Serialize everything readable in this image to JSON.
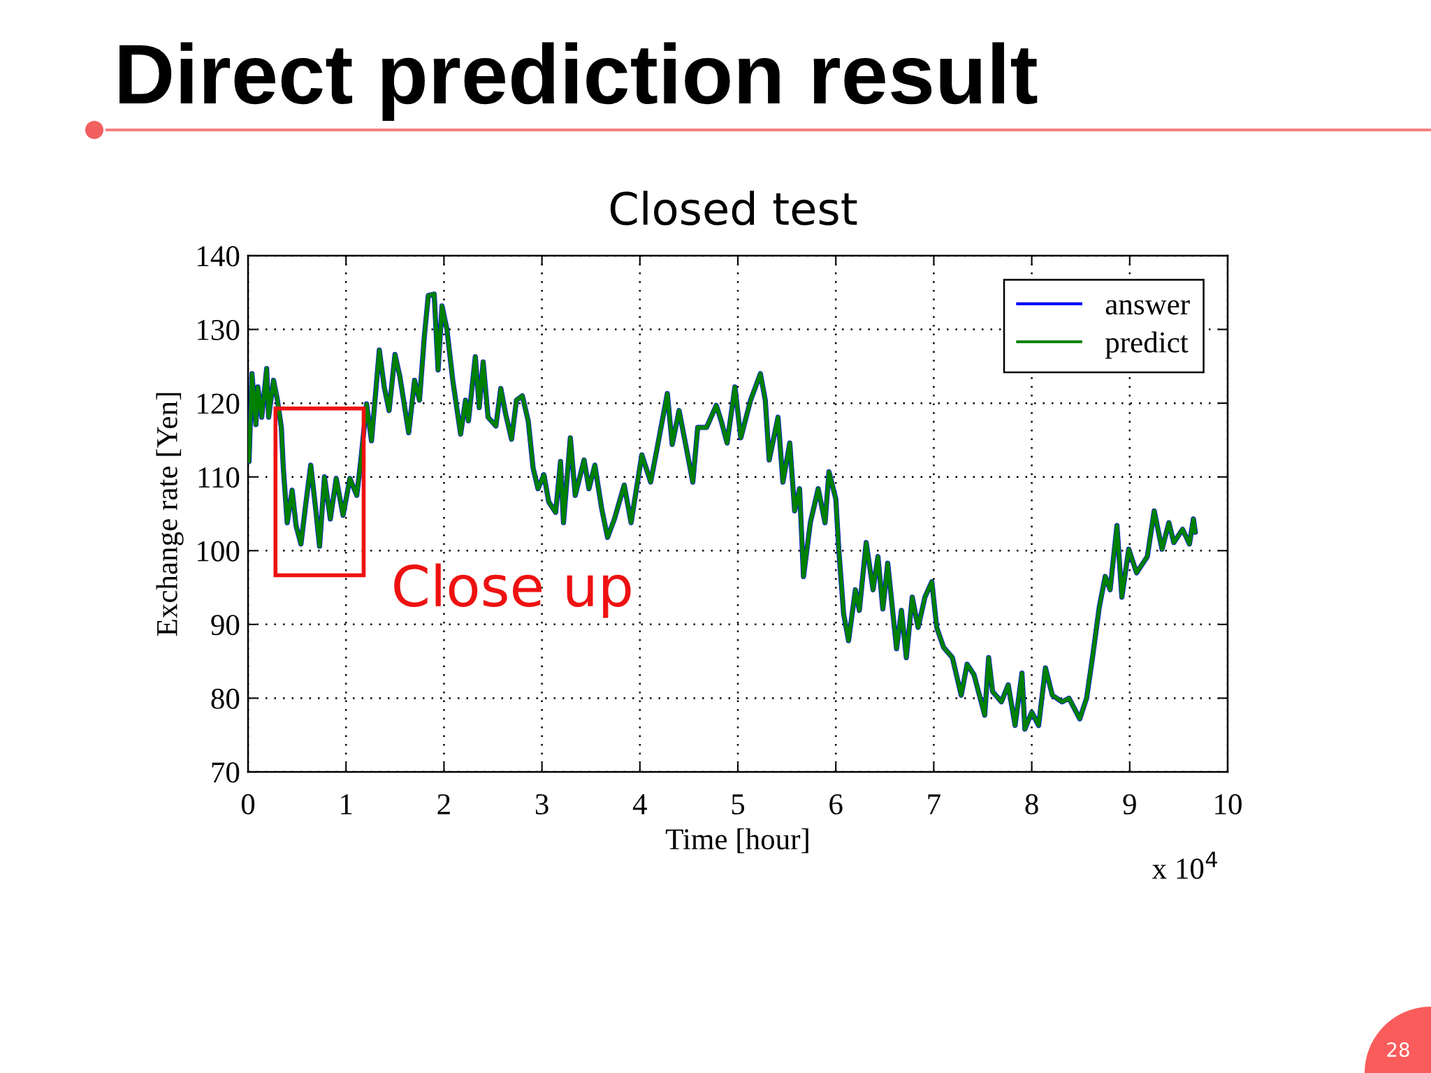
{
  "chart_data": {
    "type": "line",
    "title": "Direct prediction result",
    "subtitle": "Closed test",
    "xlabel": "Time [hour]",
    "ylabel": "Exchange rate [Yen]",
    "annotations": [
      "Close up",
      "x 10$^{4}$",
      "28"
    ],
    "x": [
      0.01,
      0.04,
      0.08,
      0.1,
      0.14,
      0.19,
      0.21,
      0.26,
      0.3,
      0.34,
      0.36,
      0.4,
      0.45,
      0.49,
      0.54,
      0.59,
      0.64,
      0.69,
      0.73,
      0.78,
      0.84,
      0.9,
      0.97,
      1.04,
      1.11,
      1.15,
      1.21,
      1.26,
      1.34,
      1.39,
      1.44,
      1.5,
      1.55,
      1.64,
      1.7,
      1.75,
      1.8,
      1.84,
      1.9,
      1.94,
      1.98,
      2.03,
      2.09,
      2.17,
      2.22,
      2.25,
      2.32,
      2.36,
      2.4,
      2.45,
      2.53,
      2.58,
      2.63,
      2.69,
      2.74,
      2.8,
      2.86,
      2.91,
      2.96,
      3.02,
      3.07,
      3.14,
      3.19,
      3.22,
      3.29,
      3.34,
      3.43,
      3.48,
      3.54,
      3.61,
      3.67,
      3.74,
      3.84,
      3.91,
      4.02,
      4.11,
      4.19,
      4.28,
      4.33,
      4.4,
      4.47,
      4.54,
      4.59,
      4.68,
      4.78,
      4.83,
      4.89,
      4.97,
      5.03,
      5.13,
      5.23,
      5.28,
      5.32,
      5.41,
      5.46,
      5.53,
      5.58,
      5.63,
      5.67,
      5.74,
      5.82,
      5.89,
      5.93,
      6.0,
      6.03,
      6.08,
      6.13,
      6.2,
      6.24,
      6.31,
      6.38,
      6.43,
      6.48,
      6.53,
      6.62,
      6.67,
      6.72,
      6.78,
      6.84,
      6.91,
      6.98,
      7.03,
      7.1,
      7.19,
      7.28,
      7.34,
      7.41,
      7.52,
      7.56,
      7.6,
      7.69,
      7.76,
      7.83,
      7.9,
      7.93,
      8.0,
      8.07,
      8.14,
      8.21,
      8.31,
      8.38,
      8.49,
      8.56,
      8.62,
      8.69,
      8.75,
      8.8,
      8.87,
      8.92,
      8.99,
      9.07,
      9.18,
      9.25,
      9.33,
      9.4,
      9.45,
      9.54,
      9.61,
      9.65,
      9.67
    ],
    "series": [
      {
        "name": "answer",
        "color": "#0000ff",
        "values": [
          112.1,
          124.0,
          117.1,
          122.2,
          118.1,
          124.7,
          118.1,
          123.1,
          120.4,
          116.7,
          111.2,
          103.8,
          108.2,
          103.4,
          100.9,
          106.4,
          111.6,
          105.7,
          100.6,
          110.0,
          104.3,
          109.8,
          104.8,
          109.8,
          107.5,
          112.1,
          119.9,
          114.9,
          127.2,
          122.2,
          119.0,
          126.6,
          123.6,
          116.0,
          123.1,
          120.4,
          129.1,
          134.6,
          134.8,
          124.5,
          133.2,
          130.0,
          123.1,
          115.8,
          120.4,
          117.6,
          126.3,
          119.4,
          125.6,
          118.1,
          116.9,
          122.0,
          118.5,
          115.1,
          120.4,
          121.0,
          117.6,
          111.2,
          108.4,
          110.3,
          106.6,
          105.2,
          112.1,
          103.8,
          115.3,
          107.5,
          112.3,
          108.4,
          111.6,
          105.7,
          101.8,
          104.3,
          108.9,
          103.8,
          113.0,
          109.3,
          114.9,
          121.3,
          114.4,
          119.0,
          114.2,
          109.3,
          116.7,
          116.7,
          119.7,
          117.6,
          114.6,
          122.2,
          115.3,
          120.4,
          124.0,
          120.4,
          112.3,
          118.1,
          109.3,
          114.6,
          105.4,
          108.4,
          96.5,
          103.8,
          108.4,
          103.8,
          110.7,
          107.0,
          100.2,
          91.4,
          87.8,
          94.7,
          91.9,
          101.1,
          94.7,
          99.2,
          92.1,
          98.3,
          86.7,
          91.9,
          85.5,
          93.7,
          89.6,
          93.7,
          95.8,
          89.6,
          86.9,
          85.5,
          80.4,
          84.6,
          83.2,
          77.7,
          85.5,
          80.9,
          79.5,
          81.8,
          76.3,
          83.4,
          75.8,
          78.1,
          76.3,
          84.1,
          80.4,
          79.5,
          80.0,
          77.2,
          80.0,
          85.5,
          92.4,
          96.5,
          94.7,
          103.4,
          93.7,
          100.2,
          97.0,
          99.2,
          105.4,
          100.2,
          103.8,
          101.1,
          102.9,
          100.9,
          104.3,
          102.5
        ]
      },
      {
        "name": "predict",
        "color": "#008000",
        "values": [
          112.1,
          124.0,
          117.1,
          122.2,
          118.1,
          124.7,
          118.1,
          123.1,
          120.4,
          116.7,
          111.2,
          103.8,
          108.2,
          103.4,
          100.9,
          106.4,
          111.6,
          105.7,
          100.6,
          110.0,
          104.3,
          109.8,
          104.8,
          109.8,
          107.5,
          112.1,
          119.9,
          114.9,
          127.2,
          122.2,
          119.0,
          126.6,
          123.6,
          116.0,
          123.1,
          120.4,
          129.1,
          134.6,
          134.8,
          124.5,
          133.2,
          130.0,
          123.1,
          115.8,
          120.4,
          117.6,
          126.3,
          119.4,
          125.6,
          118.1,
          116.9,
          122.0,
          118.5,
          115.1,
          120.4,
          121.0,
          117.6,
          111.2,
          108.4,
          110.3,
          106.6,
          105.2,
          112.1,
          103.8,
          115.3,
          107.5,
          112.3,
          108.4,
          111.6,
          105.7,
          101.8,
          104.3,
          108.9,
          103.8,
          113.0,
          109.3,
          114.9,
          121.3,
          114.4,
          119.0,
          114.2,
          109.3,
          116.7,
          116.7,
          119.7,
          117.6,
          114.6,
          122.2,
          115.3,
          120.4,
          124.0,
          120.4,
          112.3,
          118.1,
          109.3,
          114.6,
          105.4,
          108.4,
          96.5,
          103.8,
          108.4,
          103.8,
          110.7,
          107.0,
          100.2,
          91.4,
          87.8,
          94.7,
          91.9,
          101.1,
          94.7,
          99.2,
          92.1,
          98.3,
          86.7,
          91.9,
          85.5,
          93.7,
          89.6,
          93.7,
          95.8,
          89.6,
          86.9,
          85.5,
          80.4,
          84.6,
          83.2,
          77.7,
          85.5,
          80.9,
          79.5,
          81.8,
          76.3,
          83.4,
          75.8,
          78.1,
          76.3,
          84.1,
          80.4,
          79.5,
          80.0,
          77.2,
          80.0,
          85.5,
          92.4,
          96.5,
          94.7,
          103.4,
          93.7,
          100.2,
          97.0,
          99.2,
          105.4,
          100.2,
          103.8,
          101.1,
          102.9,
          100.9,
          104.3,
          102.5
        ]
      }
    ],
    "xlim": [
      0,
      10
    ],
    "xticks": [
      0,
      1,
      2,
      3,
      4,
      5,
      6,
      7,
      8,
      9,
      10
    ],
    "ylim": [
      70,
      140
    ],
    "yticks": [
      70,
      80,
      90,
      100,
      110,
      120,
      130,
      140
    ],
    "grid": true,
    "legend": "top right",
    "line_style": "solid",
    "marker": "none"
  }
}
